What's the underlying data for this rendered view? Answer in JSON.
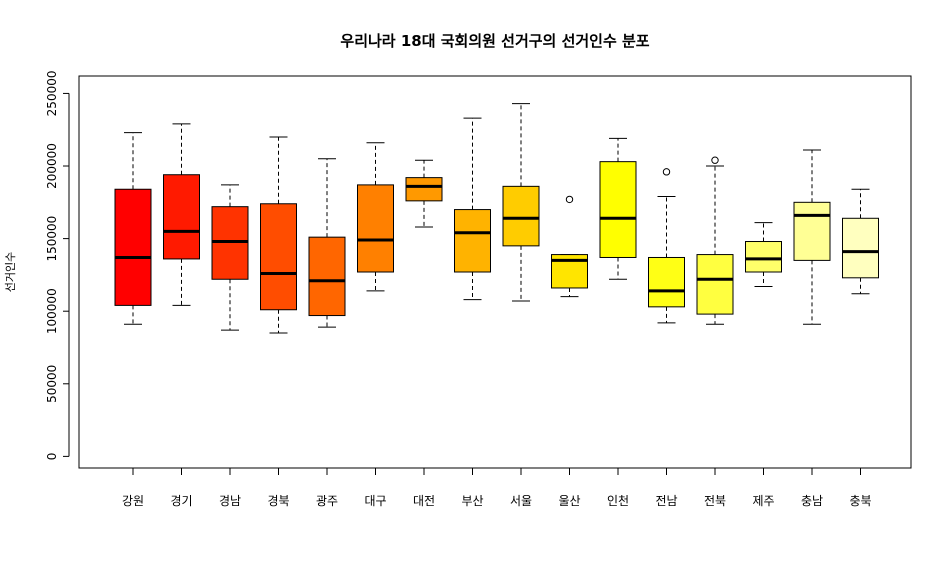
{
  "chart_data": {
    "type": "boxplot",
    "title": "우리나라 18대 국회의원 선거구의 선거인수 분포",
    "xlabel": "",
    "ylabel": "선거인수",
    "ylim": [
      -8000,
      262000
    ],
    "yticks": [
      0,
      50000,
      100000,
      150000,
      200000,
      250000
    ],
    "ytick_labels": [
      "0",
      "50000",
      "100000",
      "150000",
      "200000",
      "250000"
    ],
    "grid": false,
    "categories": [
      "강원",
      "경기",
      "경남",
      "경북",
      "광주",
      "대구",
      "대전",
      "부산",
      "서울",
      "울산",
      "인천",
      "전남",
      "전북",
      "제주",
      "충남",
      "충북"
    ],
    "colors": [
      "#FF0000",
      "#FF1A00",
      "#FF3300",
      "#FF4D00",
      "#FF6600",
      "#FF8000",
      "#FF9900",
      "#FFB300",
      "#FFCC00",
      "#FFE500",
      "#FFFF00",
      "#FFFF15",
      "#FFFF40",
      "#FFFF6A",
      "#FFFF95",
      "#FFFFBF"
    ],
    "boxes": [
      {
        "min": 91000,
        "q1": 104000,
        "median": 137000,
        "q3": 184000,
        "max": 223000,
        "outliers": []
      },
      {
        "min": 104000,
        "q1": 136000,
        "median": 155000,
        "q3": 194000,
        "max": 229000,
        "outliers": []
      },
      {
        "min": 87000,
        "q1": 122000,
        "median": 148000,
        "q3": 172000,
        "max": 187000,
        "outliers": []
      },
      {
        "min": 85000,
        "q1": 101000,
        "median": 126000,
        "q3": 174000,
        "max": 220000,
        "outliers": []
      },
      {
        "min": 89000,
        "q1": 97000,
        "median": 121000,
        "q3": 151000,
        "max": 205000,
        "outliers": []
      },
      {
        "min": 114000,
        "q1": 127000,
        "median": 149000,
        "q3": 187000,
        "max": 216000,
        "outliers": []
      },
      {
        "min": 158000,
        "q1": 176000,
        "median": 186000,
        "q3": 192000,
        "max": 204000,
        "outliers": []
      },
      {
        "min": 108000,
        "q1": 127000,
        "median": 154000,
        "q3": 170000,
        "max": 233000,
        "outliers": []
      },
      {
        "min": 107000,
        "q1": 145000,
        "median": 164000,
        "q3": 186000,
        "max": 243000,
        "outliers": []
      },
      {
        "min": 110000,
        "q1": 116000,
        "median": 135000,
        "q3": 139000,
        "max": 139000,
        "outliers": [
          177000
        ]
      },
      {
        "min": 122000,
        "q1": 137000,
        "median": 164000,
        "q3": 203000,
        "max": 219000,
        "outliers": []
      },
      {
        "min": 92000,
        "q1": 103000,
        "median": 114000,
        "q3": 137000,
        "max": 179000,
        "outliers": [
          196000
        ]
      },
      {
        "min": 91000,
        "q1": 98000,
        "median": 122000,
        "q3": 139000,
        "max": 200000,
        "outliers": [
          204000
        ]
      },
      {
        "min": 117000,
        "q1": 127000,
        "median": 136000,
        "q3": 148000,
        "max": 161000,
        "outliers": []
      },
      {
        "min": 91000,
        "q1": 135000,
        "median": 166000,
        "q3": 175000,
        "max": 211000,
        "outliers": []
      },
      {
        "min": 112000,
        "q1": 123000,
        "median": 141000,
        "q3": 164000,
        "max": 184000,
        "outliers": []
      }
    ]
  }
}
